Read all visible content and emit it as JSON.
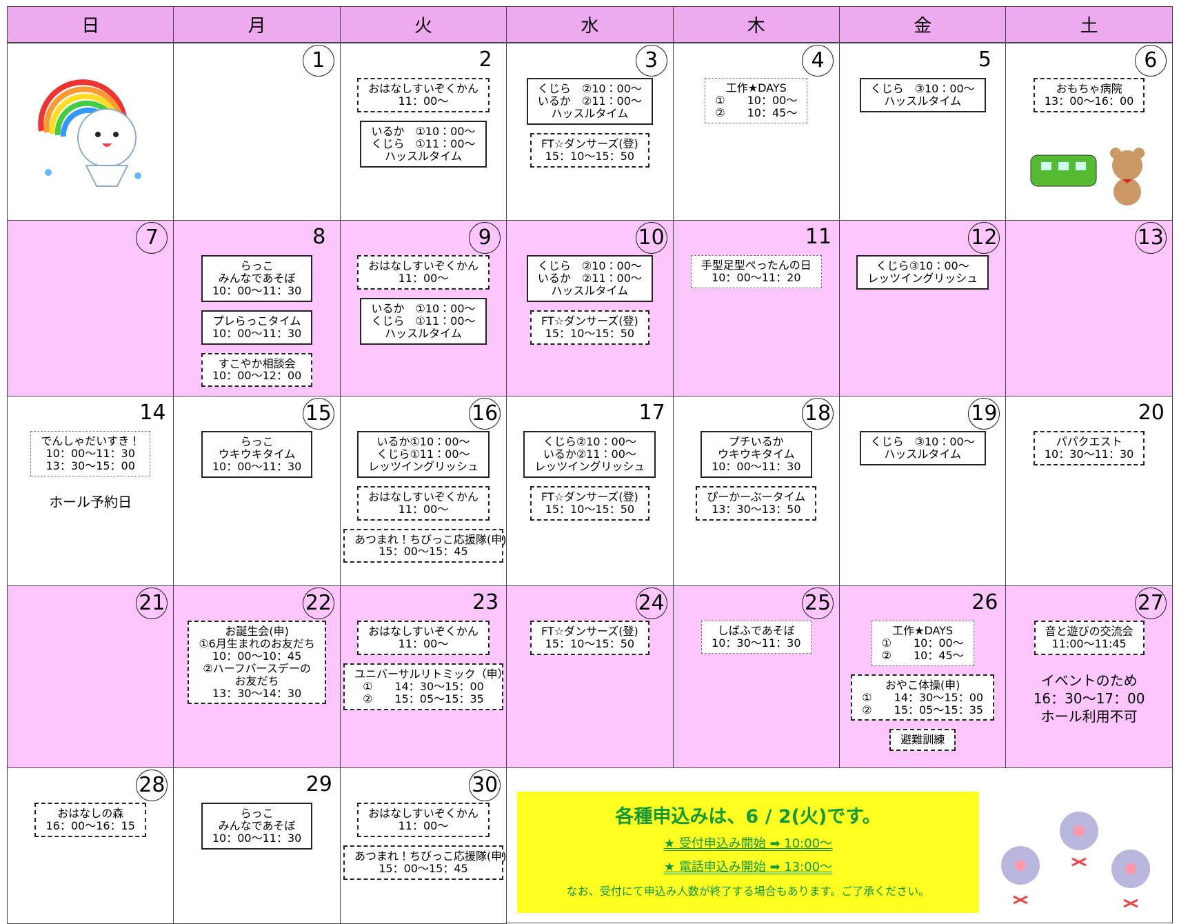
{
  "header": {
    "weekdays": [
      "日",
      "月",
      "火",
      "水",
      "木",
      "金",
      "土"
    ]
  },
  "weeks": [
    {
      "days": [
        {},
        {
          "day": 1,
          "circled": true,
          "events": []
        },
        {
          "day": 2,
          "circled": false,
          "events": [
            {
              "style": "dashed",
              "lines": [
                "おはなしすいぞくかん",
                "11：00～"
              ]
            },
            {
              "style": "solid",
              "lines": [
                "いるか　①10：00～",
                "くじら　①11：00～",
                "ハッスルタイム"
              ]
            }
          ]
        },
        {
          "day": 3,
          "circled": true,
          "events": [
            {
              "style": "solid",
              "lines": [
                "くじら　②10：00～",
                "いるか　②11：00～",
                "ハッスルタイム"
              ]
            },
            {
              "style": "dashed",
              "lines": [
                "FT☆ダンサーズ(登)",
                "15：10～15：50"
              ]
            }
          ]
        },
        {
          "day": 4,
          "circled": true,
          "events": [
            {
              "style": "dotted",
              "lines": [
                "工作★DAYS",
                "①　　10：00～",
                "②　　10：45～"
              ]
            }
          ]
        },
        {
          "day": 5,
          "circled": false,
          "events": [
            {
              "style": "solid",
              "lines": [
                "くじら　③10：00～",
                "ハッスルタイム"
              ]
            }
          ]
        },
        {
          "day": 6,
          "circled": true,
          "events": [
            {
              "style": "dashed",
              "lines": [
                "おもちゃ病院",
                "13：00～16：00"
              ]
            }
          ]
        }
      ]
    },
    {
      "days": [
        {
          "day": 7,
          "circled": true,
          "events": []
        },
        {
          "day": 8,
          "circled": false,
          "events": [
            {
              "style": "solid",
              "lines": [
                "らっこ",
                "みんなであそぼ",
                "10：00～11：30"
              ]
            },
            {
              "style": "solid",
              "lines": [
                "プレらっこタイム",
                "10：00～11：30"
              ]
            },
            {
              "style": "dashed",
              "lines": [
                "すこやか相談会",
                "10：00～12：00"
              ]
            }
          ]
        },
        {
          "day": 9,
          "circled": true,
          "events": [
            {
              "style": "dashed",
              "lines": [
                "おはなしすいぞくかん",
                "11：00～"
              ]
            },
            {
              "style": "solid",
              "lines": [
                "いるか　①10：00～",
                "くじら　①11：00～",
                "ハッスルタイム"
              ]
            }
          ]
        },
        {
          "day": 10,
          "circled": true,
          "events": [
            {
              "style": "solid",
              "lines": [
                "くじら　②10：00～",
                "いるか　②11：00～",
                "ハッスルタイム"
              ]
            },
            {
              "style": "dashed",
              "lines": [
                "FT☆ダンサーズ(登)",
                "15：10～15：50"
              ]
            }
          ]
        },
        {
          "day": 11,
          "circled": false,
          "events": [
            {
              "style": "dotted",
              "lines": [
                "手型足型ぺったんの日",
                "10：00～11：20"
              ]
            }
          ]
        },
        {
          "day": 12,
          "circled": true,
          "events": [
            {
              "style": "solid",
              "lines": [
                "くじら③10：00～",
                "レッツイングリッシュ"
              ]
            }
          ]
        },
        {
          "day": 13,
          "circled": true,
          "events": []
        }
      ]
    },
    {
      "days": [
        {
          "day": 14,
          "circled": false,
          "events": [
            {
              "style": "dotted",
              "lines": [
                "でんしゃだいすき！",
                "10：00～11：30",
                "13：30～15：00"
              ]
            }
          ],
          "notes": [
            "ホール予約日"
          ]
        },
        {
          "day": 15,
          "circled": true,
          "events": [
            {
              "style": "solid",
              "lines": [
                "らっこ",
                "ウキウキタイム",
                "10：00～11：30"
              ]
            }
          ]
        },
        {
          "day": 16,
          "circled": true,
          "events": [
            {
              "style": "solid",
              "lines": [
                "いるか①10：00～",
                "くじら①11：00～",
                "レッツイングリッシュ"
              ]
            },
            {
              "style": "dashed",
              "lines": [
                "おはなしすいぞくかん",
                "11：00～"
              ]
            },
            {
              "style": "dashed",
              "lines": [
                "あつまれ！ちびっこ応援隊(申)",
                "15：00～15：45"
              ]
            }
          ]
        },
        {
          "day": 17,
          "circled": false,
          "events": [
            {
              "style": "solid",
              "lines": [
                "くじら②10：00～",
                "いるか②11：00～",
                "レッツイングリッシュ"
              ]
            },
            {
              "style": "dashed",
              "lines": [
                "FT☆ダンサーズ(登)",
                "15：10～15：50"
              ]
            }
          ]
        },
        {
          "day": 18,
          "circled": true,
          "events": [
            {
              "style": "solid",
              "lines": [
                "プチいるか",
                "ウキウキタイム",
                "10：00～11：30"
              ]
            },
            {
              "style": "dashed",
              "lines": [
                "ぴーかーぶータイム",
                "13：30～13：50"
              ]
            }
          ]
        },
        {
          "day": 19,
          "circled": true,
          "events": [
            {
              "style": "solid",
              "lines": [
                "くじら　③10：00～",
                "ハッスルタイム"
              ]
            }
          ]
        },
        {
          "day": 20,
          "circled": false,
          "events": [
            {
              "style": "dashed",
              "lines": [
                "パパクエスト",
                "10：30～11：30"
              ]
            }
          ]
        }
      ]
    },
    {
      "days": [
        {
          "day": 21,
          "circled": true,
          "events": []
        },
        {
          "day": 22,
          "circled": true,
          "events": [
            {
              "style": "dashed",
              "lines": [
                "お誕生会(申)",
                "①6月生まれのお友だち",
                "10：00～10：45",
                "②ハーフバースデーの",
                "お友だち",
                "13：30～14：30"
              ]
            }
          ]
        },
        {
          "day": 23,
          "circled": false,
          "events": [
            {
              "style": "dashed",
              "lines": [
                "おはなしすいぞくかん",
                "11：00～"
              ]
            },
            {
              "style": "dashed",
              "lines": [
                "ユニバーサルリトミック（申）",
                "①　　14：30～15：00",
                "②　　15：05～15：35"
              ]
            }
          ]
        },
        {
          "day": 24,
          "circled": true,
          "events": [
            {
              "style": "dashed",
              "lines": [
                "FT☆ダンサーズ(登)",
                "15：10～15：50"
              ]
            }
          ]
        },
        {
          "day": 25,
          "circled": true,
          "events": [
            {
              "style": "dotted",
              "lines": [
                "しばふであそぼ",
                "10：30～11：30"
              ]
            }
          ]
        },
        {
          "day": 26,
          "circled": false,
          "events": [
            {
              "style": "dotted",
              "lines": [
                "工作★DAYS",
                "①　　10：00～",
                "②　　10：45～"
              ]
            },
            {
              "style": "dashed",
              "lines": [
                "おやこ体操(申)",
                "①　　14：30～15：00",
                "②　　15：05～15：35"
              ]
            },
            {
              "style": "dashed",
              "lines": [
                "避難訓練"
              ]
            }
          ]
        },
        {
          "day": 27,
          "circled": true,
          "events": [
            {
              "style": "dashed",
              "lines": [
                "音と遊びの交流会",
                "11:00～11:45"
              ]
            }
          ],
          "notes": [
            "イベントのため",
            "16：30～17：00",
            "ホール利用不可"
          ]
        }
      ]
    },
    {
      "days": [
        {
          "day": 28,
          "circled": true,
          "events": [
            {
              "style": "dashed",
              "lines": [
                "おはなしの森",
                "16：00～16：15"
              ]
            }
          ]
        },
        {
          "day": 29,
          "circled": false,
          "events": [
            {
              "style": "solid",
              "lines": [
                "らっこ",
                "みんなであそぼ",
                "10：00～11：30"
              ]
            }
          ]
        },
        {
          "day": 30,
          "circled": true,
          "events": [
            {
              "style": "dashed",
              "lines": [
                "おはなしすいぞくかん",
                "11：00～"
              ]
            },
            {
              "style": "dashed",
              "lines": [
                "あつまれ！ちびっこ応援隊(申)",
                "15：00～15：45"
              ]
            }
          ]
        }
      ]
    }
  ],
  "notice": {
    "title": "各種申込みは、6 / 2(火)です。",
    "lines": [
      "★ 受付申込み開始 ➡ 10:00～",
      "★ 電話申込み開始 ➡ 13:00～"
    ],
    "footer": "なお、受付にて申込み人数が終了する場合もあります。ご了承ください。"
  }
}
